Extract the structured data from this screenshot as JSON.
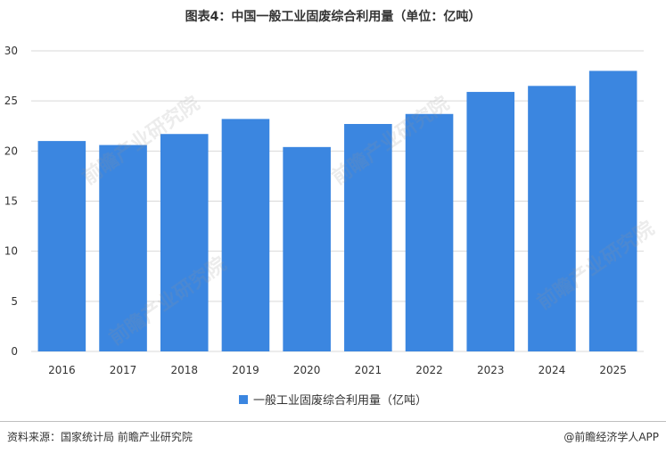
{
  "title": "图表4：中国一般工业固废综合利用量（单位：亿吨）",
  "colors": {
    "bar": "#3b86e0",
    "grid": "#d9d9d9",
    "axis_text": "#333333"
  },
  "chart_data": {
    "type": "bar",
    "categories": [
      "2016",
      "2017",
      "2018",
      "2019",
      "2020",
      "2021",
      "2022",
      "2023",
      "2024",
      "2025"
    ],
    "series": [
      {
        "name": "一般工业固废综合利用量（亿吨）",
        "values": [
          21.0,
          20.6,
          21.7,
          23.2,
          20.4,
          22.7,
          23.7,
          25.9,
          26.5,
          28.0
        ]
      }
    ],
    "ylim": [
      0,
      30
    ],
    "yticks": [
      0,
      5,
      10,
      15,
      20,
      25,
      30
    ],
    "grid": true,
    "legend": "bottom",
    "xlabel": "",
    "ylabel": ""
  },
  "legend_label": "一般工业固废综合利用量（亿吨）",
  "footer": {
    "source": "资料来源：国家统计局 前瞻产业研究院",
    "brand": "@前瞻经济学人APP"
  },
  "watermark_text": "前瞻产业研究院"
}
